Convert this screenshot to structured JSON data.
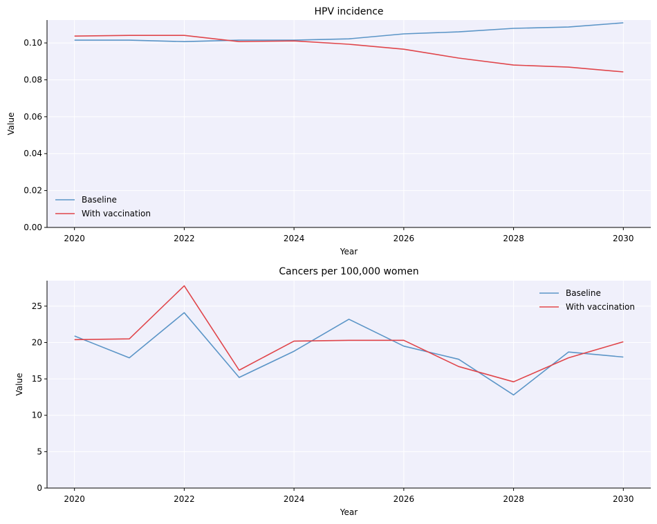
{
  "chart_data": [
    {
      "type": "line",
      "title": "HPV incidence",
      "xlabel": "Year",
      "ylabel": "Value",
      "x": [
        2020,
        2021,
        2022,
        2023,
        2024,
        2025,
        2026,
        2027,
        2028,
        2029,
        2030
      ],
      "xlim": [
        2019.5,
        2030.5
      ],
      "ylim": [
        0,
        0.1124
      ],
      "xticks": [
        2020,
        2022,
        2024,
        2026,
        2028,
        2030
      ],
      "xtick_labels": [
        "2020",
        "2022",
        "2024",
        "2026",
        "2028",
        "2030"
      ],
      "yticks": [
        0,
        0.02,
        0.04,
        0.06,
        0.08,
        0.1
      ],
      "ytick_labels": [
        "0.00",
        "0.02",
        "0.04",
        "0.06",
        "0.08",
        "0.10"
      ],
      "grid": true,
      "legend_position": "lower-left",
      "series": [
        {
          "name": "Baseline",
          "color": "#5b95c7",
          "values": [
            0.1015,
            0.1015,
            0.1007,
            0.1015,
            0.1015,
            0.1022,
            0.1049,
            0.106,
            0.1079,
            0.1086,
            0.1109
          ]
        },
        {
          "name": "With vaccination",
          "color": "#e0454a",
          "values": [
            0.1037,
            0.1041,
            0.1041,
            0.1007,
            0.1011,
            0.0993,
            0.0966,
            0.0918,
            0.088,
            0.0869,
            0.0843
          ]
        }
      ]
    },
    {
      "type": "line",
      "title": "Cancers per 100,000 women",
      "xlabel": "Year",
      "ylabel": "Value",
      "x": [
        2020,
        2021,
        2022,
        2023,
        2024,
        2025,
        2026,
        2027,
        2028,
        2029,
        2030
      ],
      "xlim": [
        2019.5,
        2030.5
      ],
      "ylim": [
        0,
        28.5
      ],
      "xticks": [
        2020,
        2022,
        2024,
        2026,
        2028,
        2030
      ],
      "xtick_labels": [
        "2020",
        "2022",
        "2024",
        "2026",
        "2028",
        "2030"
      ],
      "yticks": [
        0,
        5,
        10,
        15,
        20,
        25
      ],
      "ytick_labels": [
        "0",
        "5",
        "10",
        "15",
        "20",
        "25"
      ],
      "grid": true,
      "legend_position": "upper-right",
      "series": [
        {
          "name": "Baseline",
          "color": "#5b95c7",
          "values": [
            20.9,
            17.9,
            24.1,
            15.2,
            18.8,
            23.2,
            19.5,
            17.7,
            12.8,
            18.7,
            18.0
          ]
        },
        {
          "name": "With vaccination",
          "color": "#e0454a",
          "values": [
            20.4,
            20.5,
            27.8,
            16.2,
            20.2,
            20.3,
            20.3,
            16.7,
            14.6,
            17.9,
            20.1
          ]
        }
      ]
    }
  ],
  "style": {
    "plot_background": "#f0f0fb",
    "grid_color": "#ffffff",
    "axis_color": "#000000"
  }
}
